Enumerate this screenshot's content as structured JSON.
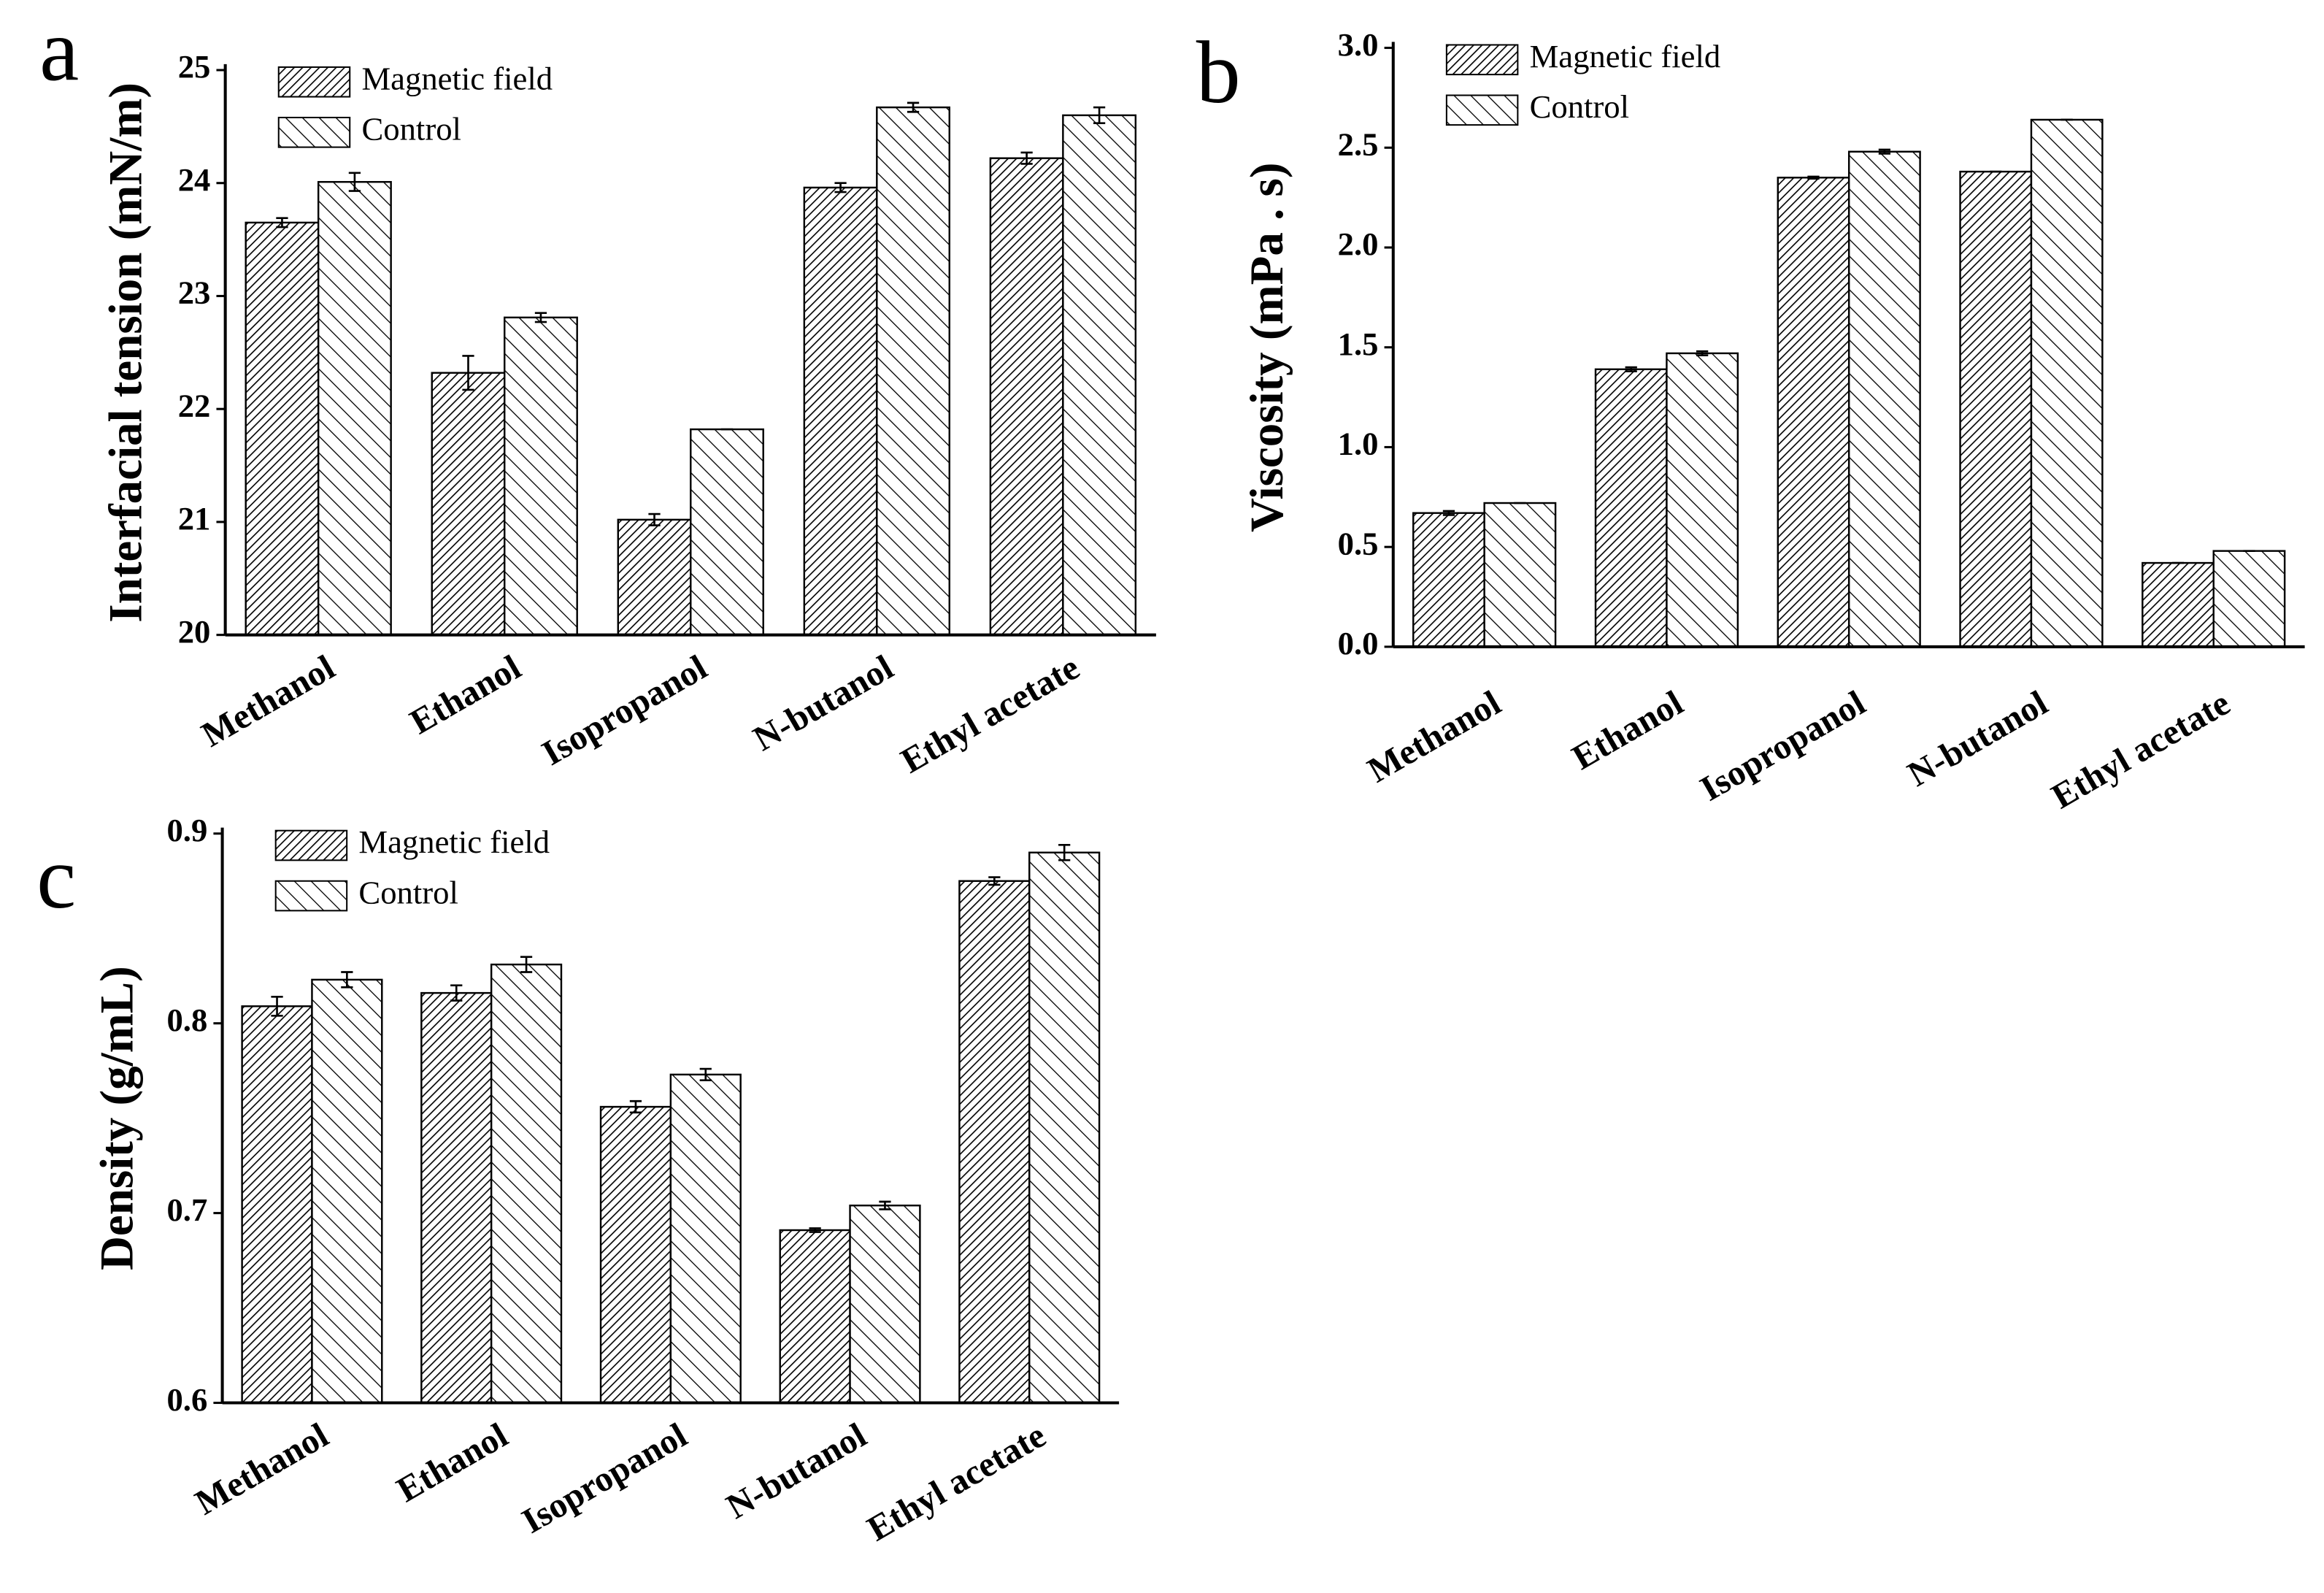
{
  "chart_data": [
    {
      "type": "bar",
      "panel_label": "a",
      "y_label": "Interfacial tension (mN/m)",
      "categories": [
        "Methanol",
        "Ethanol",
        "Isopropanol",
        "N-butanol",
        "Ethyl acetate"
      ],
      "series": [
        {
          "name": "Magnetic field",
          "color": "#000000",
          "hatch": "dense",
          "values": [
            23.65,
            22.32,
            21.02,
            23.96,
            24.22
          ],
          "errors": [
            0.04,
            0.15,
            0.05,
            0.04,
            0.05
          ]
        },
        {
          "name": "Control",
          "color": "#000000",
          "hatch": "sparse",
          "values": [
            24.01,
            22.81,
            21.82,
            24.67,
            24.6
          ],
          "errors": [
            0.08,
            0.04,
            0,
            0.04,
            0.07
          ]
        }
      ],
      "ylim": [
        20,
        25
      ],
      "yticks": [
        20,
        21,
        22,
        23,
        24,
        25
      ],
      "legend": "upper left"
    },
    {
      "type": "bar",
      "panel_label": "b",
      "y_label": "Viscosity (mPa . s)",
      "categories": [
        "Methanol",
        "Ethanol",
        "Isopropanol",
        "N-butanol",
        "Ethyl acetate"
      ],
      "series": [
        {
          "name": "Magnetic field",
          "color": "#000000",
          "hatch": "dense",
          "values": [
            0.67,
            1.39,
            2.35,
            2.38,
            0.42
          ],
          "errors": [
            0.01,
            0.01,
            0.005,
            0,
            0
          ]
        },
        {
          "name": "Control",
          "color": "#000000",
          "hatch": "sparse",
          "values": [
            0.72,
            1.47,
            2.48,
            2.64,
            0.48
          ],
          "errors": [
            0,
            0.01,
            0.01,
            0,
            0
          ]
        }
      ],
      "ylim": [
        0,
        3
      ],
      "yticks": [
        {
          "value": 0,
          "label": "0.0"
        },
        0.5,
        {
          "value": 1,
          "label": "1.0"
        },
        1.5,
        {
          "value": 2,
          "label": "2.0"
        },
        2.5,
        {
          "value": 3,
          "label": "3.0"
        }
      ],
      "legend": "upper left"
    },
    {
      "type": "bar",
      "panel_label": "c",
      "y_label": "Density (g/mL)",
      "categories": [
        "Methanol",
        "Ethanol",
        "Isopropanol",
        "N-butanol",
        "Ethyl acetate"
      ],
      "series": [
        {
          "name": "Magnetic field",
          "color": "#000000",
          "hatch": "dense",
          "values": [
            0.809,
            0.816,
            0.756,
            0.691,
            0.875
          ],
          "errors": [
            0.005,
            0.004,
            0.003,
            0.001,
            0.002
          ]
        },
        {
          "name": "Control",
          "color": "#000000",
          "hatch": "sparse",
          "values": [
            0.823,
            0.831,
            0.773,
            0.704,
            0.89
          ],
          "errors": [
            0.004,
            0.004,
            0.003,
            0.002,
            0.004
          ]
        }
      ],
      "ylim": [
        0.6,
        0.9
      ],
      "yticks": [
        0.6,
        0.7,
        0.8,
        0.9
      ],
      "legend": "upper left"
    }
  ]
}
